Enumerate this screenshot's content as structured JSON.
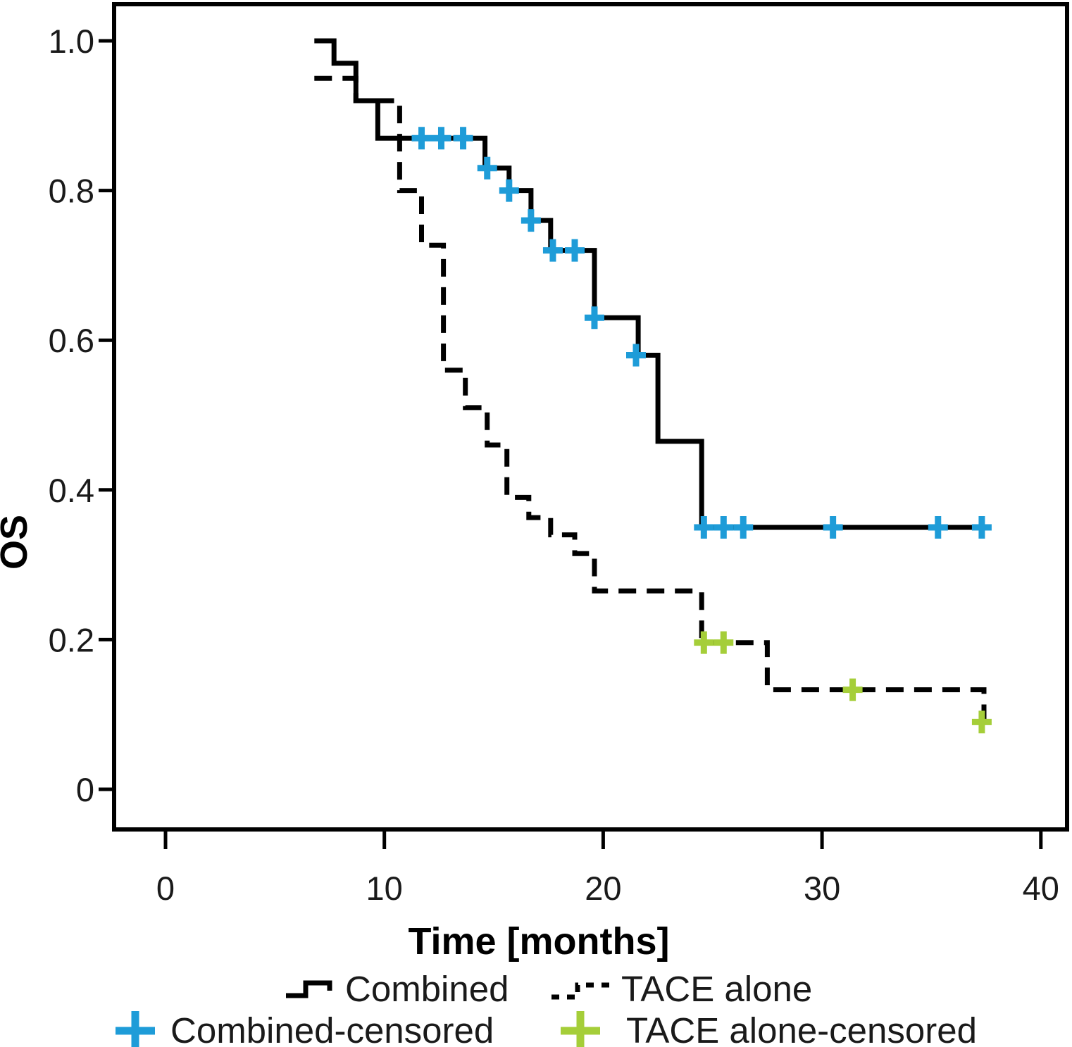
{
  "chart_data": {
    "type": "line",
    "subtype": "kaplan-meier-step",
    "title": "",
    "xlabel": "Time [months]",
    "ylabel": "OS",
    "xlim": [
      -2.4,
      41.2
    ],
    "ylim": [
      -0.05,
      1.05
    ],
    "grid": false,
    "legend_position": "bottom",
    "x_ticks": [
      {
        "v": 0,
        "label": "0"
      },
      {
        "v": 10,
        "label": "10"
      },
      {
        "v": 20,
        "label": "20"
      },
      {
        "v": 30,
        "label": "30"
      },
      {
        "v": 40,
        "label": "40"
      }
    ],
    "y_ticks": [
      {
        "v": 1.0,
        "label": "1.0"
      },
      {
        "v": 0.8,
        "label": "0.8"
      },
      {
        "v": 0.6,
        "label": "0.6"
      },
      {
        "v": 0.4,
        "label": "0.4"
      },
      {
        "v": 0.2,
        "label": "0.2"
      },
      {
        "v": 0.0,
        "label": "0"
      }
    ],
    "series": [
      {
        "name": "Combined",
        "line_style": "solid",
        "line_color": "#000000",
        "censor_color": "#1E9CD8",
        "start": [
          6.8,
          1.0
        ],
        "steps": [
          [
            7.7,
            0.97
          ],
          [
            8.7,
            0.92
          ],
          [
            9.7,
            0.87
          ],
          [
            14.6,
            0.83
          ],
          [
            15.7,
            0.8
          ],
          [
            16.7,
            0.76
          ],
          [
            17.6,
            0.72
          ],
          [
            19.6,
            0.63
          ],
          [
            21.6,
            0.58
          ],
          [
            22.5,
            0.465
          ],
          [
            24.5,
            0.35
          ]
        ],
        "end_time": 37.6,
        "censored": [
          [
            11.7,
            0.87
          ],
          [
            12.6,
            0.87
          ],
          [
            13.6,
            0.87
          ],
          [
            14.7,
            0.83
          ],
          [
            15.7,
            0.8
          ],
          [
            16.7,
            0.76
          ],
          [
            17.7,
            0.72
          ],
          [
            18.7,
            0.72
          ],
          [
            19.6,
            0.63
          ],
          [
            21.5,
            0.58
          ],
          [
            24.6,
            0.35
          ],
          [
            25.5,
            0.35
          ],
          [
            26.4,
            0.35
          ],
          [
            30.5,
            0.35
          ],
          [
            35.3,
            0.35
          ],
          [
            37.3,
            0.35
          ]
        ]
      },
      {
        "name": "TACE alone",
        "line_style": "dashed",
        "line_color": "#000000",
        "censor_color": "#A5CE39",
        "start": [
          6.8,
          0.95
        ],
        "steps": [
          [
            8.7,
            0.92
          ],
          [
            10.7,
            0.8
          ],
          [
            11.7,
            0.727
          ],
          [
            12.7,
            0.56
          ],
          [
            13.7,
            0.51
          ],
          [
            14.7,
            0.46
          ],
          [
            15.6,
            0.39
          ],
          [
            16.6,
            0.363
          ],
          [
            17.6,
            0.34
          ],
          [
            18.7,
            0.315
          ],
          [
            19.6,
            0.265
          ],
          [
            24.5,
            0.196
          ],
          [
            27.5,
            0.133
          ],
          [
            37.4,
            0.09
          ]
        ],
        "end_time": 37.55,
        "censored": [
          [
            24.6,
            0.196
          ],
          [
            25.5,
            0.196
          ],
          [
            31.4,
            0.133
          ],
          [
            37.3,
            0.09
          ]
        ]
      }
    ],
    "legend": {
      "combined_label": "Combined",
      "tace_label": "TACE alone",
      "combined_censored_label": "Combined-censored",
      "tace_censored_label": "TACE alone-censored"
    }
  },
  "colors": {
    "combined_censor": "#1E9CD8",
    "tace_censor": "#A5CE39",
    "line": "#000000"
  }
}
